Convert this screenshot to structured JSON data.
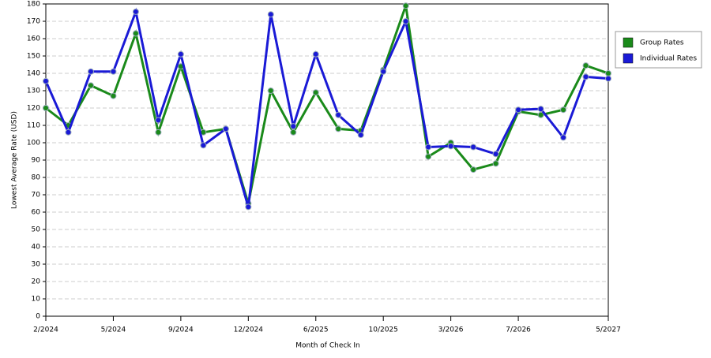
{
  "chart_data": {
    "type": "line",
    "x_label": "Month of Check In",
    "y_label": "Lowest Average Rate (USD)",
    "categories": [
      "2/2024",
      null,
      null,
      "5/2024",
      null,
      null,
      "9/2024",
      null,
      null,
      "12/2024",
      null,
      null,
      "6/2025",
      null,
      null,
      "10/2025",
      null,
      null,
      "3/2026",
      null,
      null,
      "7/2026",
      null,
      null,
      null,
      "5/2027"
    ],
    "series": [
      {
        "name": "Group Rates",
        "color": "#1a8a1a",
        "values": [
          120,
          110,
          133,
          127,
          163,
          106,
          144,
          106,
          108,
          65,
          130,
          106,
          129,
          108,
          107,
          142,
          179,
          92,
          100,
          84.5,
          88,
          118,
          116,
          119,
          144.5,
          140
        ]
      },
      {
        "name": "Individual Rates",
        "color": "#1a1ad6",
        "values": [
          135.5,
          106,
          141,
          141,
          175.5,
          113,
          151,
          98.5,
          108,
          63,
          174,
          109.5,
          151,
          116,
          104.5,
          141,
          170,
          97.5,
          98,
          97.5,
          93.5,
          119,
          119.5,
          103,
          138,
          137
        ]
      }
    ],
    "ylim": [
      0,
      180
    ],
    "yticks": [
      0,
      10,
      20,
      30,
      40,
      50,
      60,
      70,
      80,
      90,
      100,
      110,
      120,
      130,
      140,
      150,
      160,
      170,
      180
    ],
    "grid": true,
    "legend": "right"
  }
}
